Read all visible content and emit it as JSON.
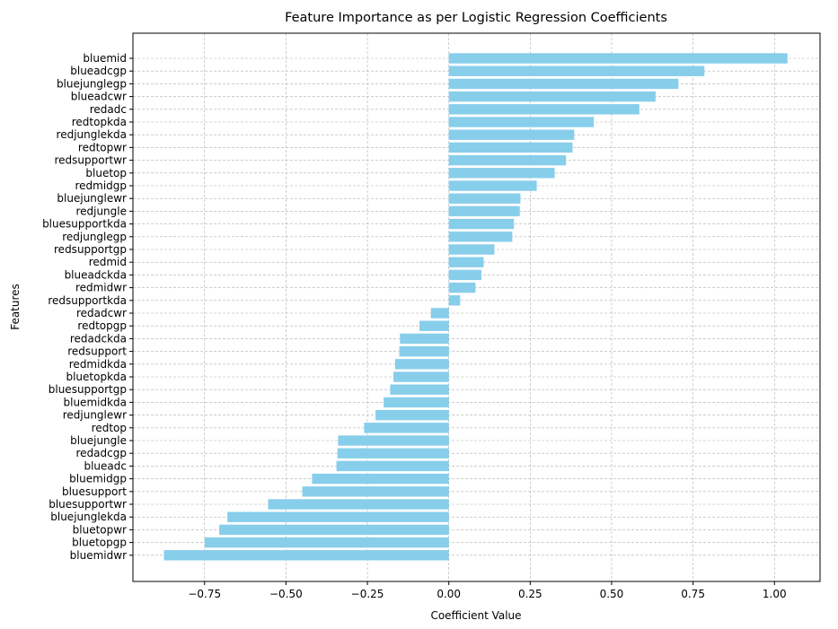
{
  "chart_data": {
    "type": "bar",
    "orientation": "horizontal",
    "title": "Feature Importance as per Logistic Regression Coefficients",
    "xlabel": "Coefficient Value",
    "ylabel": "Features",
    "xlim": [
      -0.97,
      1.14
    ],
    "xticks": [
      -0.75,
      -0.5,
      -0.25,
      0.0,
      0.25,
      0.5,
      0.75,
      1.0
    ],
    "xtick_labels": [
      "−0.75",
      "−0.50",
      "−0.25",
      "0.00",
      "0.25",
      "0.50",
      "0.75",
      "1.00"
    ],
    "grid": true,
    "bar_color": "#87ceeb",
    "categories": [
      "bluemid",
      "blueadcgp",
      "bluejunglegp",
      "blueadcwr",
      "redadc",
      "redtopkda",
      "redjunglekda",
      "redtopwr",
      "redsupportwr",
      "bluetop",
      "redmidgp",
      "bluejunglewr",
      "redjungle",
      "bluesupportkda",
      "redjunglegp",
      "redsupportgp",
      "redmid",
      "blueadckda",
      "redmidwr",
      "redsupportkda",
      "redadcwr",
      "redtopgp",
      "redadckda",
      "redsupport",
      "redmidkda",
      "bluetopkda",
      "bluesupportgp",
      "bluemidkda",
      "redjunglewr",
      "redtop",
      "bluejungle",
      "redadcgp",
      "blueadc",
      "bluemidgp",
      "bluesupport",
      "bluesupportwr",
      "bluejunglekda",
      "bluetopwr",
      "bluetopgp",
      "bluemidwr"
    ],
    "values": [
      1.04,
      0.785,
      0.705,
      0.635,
      0.585,
      0.445,
      0.385,
      0.38,
      0.36,
      0.325,
      0.27,
      0.22,
      0.218,
      0.2,
      0.195,
      0.14,
      0.107,
      0.1,
      0.082,
      0.035,
      -0.055,
      -0.09,
      -0.15,
      -0.152,
      -0.165,
      -0.17,
      -0.18,
      -0.2,
      -0.225,
      -0.26,
      -0.34,
      -0.342,
      -0.345,
      -0.42,
      -0.45,
      -0.555,
      -0.68,
      -0.705,
      -0.75,
      -0.875
    ]
  }
}
